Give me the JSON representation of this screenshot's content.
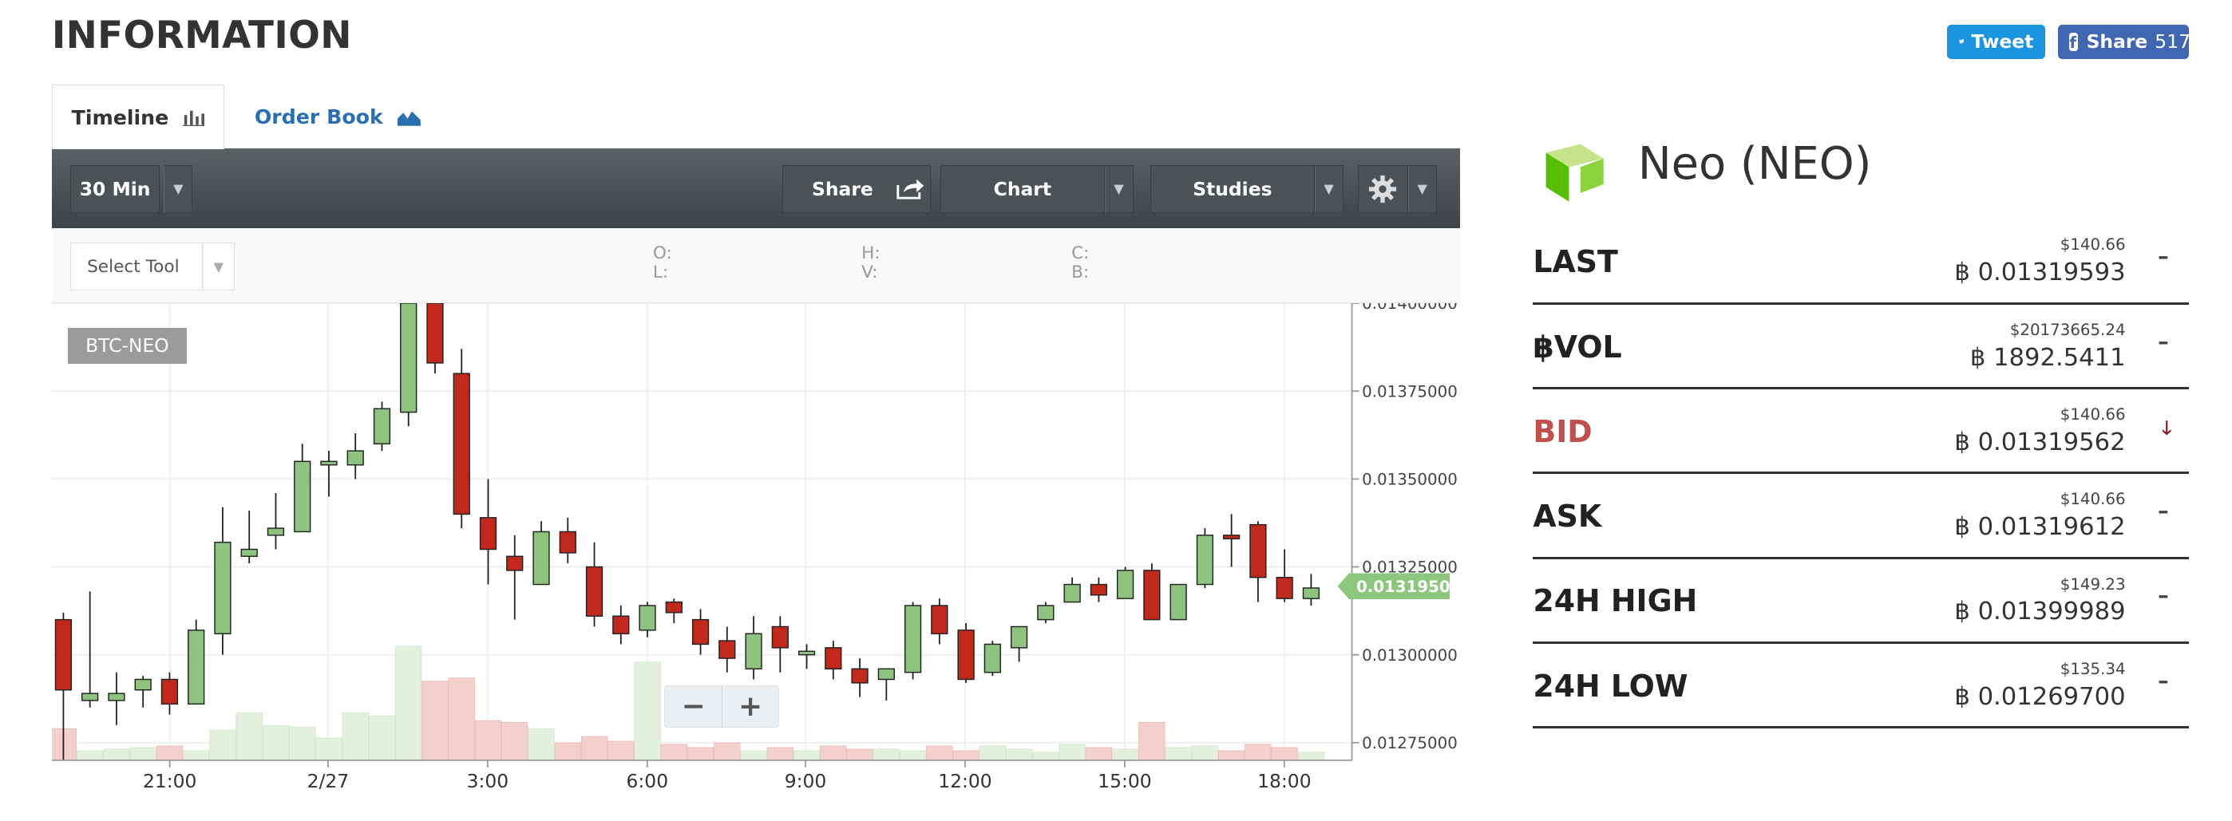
{
  "header": {
    "title": "INFORMATION"
  },
  "social": {
    "tweet_label": "Tweet",
    "share_label": "Share",
    "share_count": "517"
  },
  "tabs": [
    {
      "label": "Timeline"
    },
    {
      "label": "Order Book"
    }
  ],
  "toolbar": {
    "interval": "30 Min",
    "share_label": "Share",
    "chart_label": "Chart",
    "studies_label": "Studies"
  },
  "subtoolbar": {
    "select_tool": "Select Tool",
    "o": "O:",
    "l": "L:",
    "h": "H:",
    "v": "V:",
    "c": "C:",
    "b": "B:"
  },
  "chart": {
    "symbol": "BTC-NEO",
    "zoom_out": "−",
    "zoom_in": "+"
  },
  "chart_data": {
    "type": "candlestick",
    "symbol": "BTC-NEO",
    "x_tick_labels": [
      "21:00",
      "2/27",
      "3:00",
      "6:00",
      "9:00",
      "12:00",
      "15:00",
      "18:00"
    ],
    "y_tick_labels": [
      "0.01400000",
      "0.01375000",
      "0.01350000",
      "0.01325000",
      "0.01300000",
      "0.01275000"
    ],
    "ylim": [
      0.0127,
      0.014
    ],
    "current_price_label": "0.01319500",
    "current_price": 0.013195,
    "grid": true,
    "colors": {
      "up": "#8dc37f",
      "down": "#c0291c",
      "vol_up": "#e3f0dd",
      "vol_down": "#f3d0cc",
      "price_tag": "#8cc77d"
    },
    "candles": [
      {
        "o": 0.0131,
        "h": 0.01312,
        "l": 0.0127,
        "c": 0.0129,
        "v": 0.2
      },
      {
        "o": 0.01287,
        "h": 0.01318,
        "l": 0.01285,
        "c": 0.01289,
        "v": 0.06
      },
      {
        "o": 0.01287,
        "h": 0.01295,
        "l": 0.0128,
        "c": 0.01289,
        "v": 0.07
      },
      {
        "o": 0.0129,
        "h": 0.01294,
        "l": 0.01285,
        "c": 0.01293,
        "v": 0.08
      },
      {
        "o": 0.01293,
        "h": 0.01295,
        "l": 0.01283,
        "c": 0.01286,
        "v": 0.09
      },
      {
        "o": 0.01286,
        "h": 0.0131,
        "l": 0.01286,
        "c": 0.01307,
        "v": 0.06
      },
      {
        "o": 0.01306,
        "h": 0.01342,
        "l": 0.013,
        "c": 0.01332,
        "v": 0.19
      },
      {
        "o": 0.01328,
        "h": 0.01341,
        "l": 0.01326,
        "c": 0.0133,
        "v": 0.3
      },
      {
        "o": 0.01334,
        "h": 0.01346,
        "l": 0.0133,
        "c": 0.01336,
        "v": 0.22
      },
      {
        "o": 0.01335,
        "h": 0.0136,
        "l": 0.01335,
        "c": 0.01355,
        "v": 0.21
      },
      {
        "o": 0.01354,
        "h": 0.01358,
        "l": 0.01345,
        "c": 0.01355,
        "v": 0.14
      },
      {
        "o": 0.01354,
        "h": 0.01363,
        "l": 0.0135,
        "c": 0.01358,
        "v": 0.3
      },
      {
        "o": 0.0136,
        "h": 0.01372,
        "l": 0.01358,
        "c": 0.0137,
        "v": 0.28
      },
      {
        "o": 0.01369,
        "h": 0.014,
        "l": 0.01365,
        "c": 0.014,
        "v": 0.72
      },
      {
        "o": 0.014,
        "h": 0.01401,
        "l": 0.0138,
        "c": 0.01383,
        "v": 0.5
      },
      {
        "o": 0.0138,
        "h": 0.01387,
        "l": 0.01336,
        "c": 0.0134,
        "v": 0.52
      },
      {
        "o": 0.01339,
        "h": 0.0135,
        "l": 0.0132,
        "c": 0.0133,
        "v": 0.25
      },
      {
        "o": 0.01328,
        "h": 0.01334,
        "l": 0.0131,
        "c": 0.01324,
        "v": 0.24
      },
      {
        "o": 0.0132,
        "h": 0.01338,
        "l": 0.0132,
        "c": 0.01335,
        "v": 0.2
      },
      {
        "o": 0.01335,
        "h": 0.01339,
        "l": 0.01326,
        "c": 0.01329,
        "v": 0.11
      },
      {
        "o": 0.01325,
        "h": 0.01332,
        "l": 0.01308,
        "c": 0.01311,
        "v": 0.15
      },
      {
        "o": 0.01311,
        "h": 0.01314,
        "l": 0.01303,
        "c": 0.01306,
        "v": 0.12
      },
      {
        "o": 0.01307,
        "h": 0.01315,
        "l": 0.01305,
        "c": 0.01314,
        "v": 0.62
      },
      {
        "o": 0.01315,
        "h": 0.01316,
        "l": 0.01309,
        "c": 0.01312,
        "v": 0.1
      },
      {
        "o": 0.0131,
        "h": 0.01313,
        "l": 0.013,
        "c": 0.01303,
        "v": 0.08
      },
      {
        "o": 0.01304,
        "h": 0.01308,
        "l": 0.01295,
        "c": 0.01299,
        "v": 0.11
      },
      {
        "o": 0.01296,
        "h": 0.01311,
        "l": 0.01293,
        "c": 0.01306,
        "v": 0.06
      },
      {
        "o": 0.01308,
        "h": 0.01311,
        "l": 0.01295,
        "c": 0.01302,
        "v": 0.08
      },
      {
        "o": 0.013,
        "h": 0.01303,
        "l": 0.01296,
        "c": 0.01301,
        "v": 0.06
      },
      {
        "o": 0.01302,
        "h": 0.01304,
        "l": 0.01293,
        "c": 0.01296,
        "v": 0.09
      },
      {
        "o": 0.01296,
        "h": 0.01299,
        "l": 0.01288,
        "c": 0.01292,
        "v": 0.07
      },
      {
        "o": 0.01293,
        "h": 0.01296,
        "l": 0.01287,
        "c": 0.01296,
        "v": 0.07
      },
      {
        "o": 0.01295,
        "h": 0.01315,
        "l": 0.01293,
        "c": 0.01314,
        "v": 0.06
      },
      {
        "o": 0.01314,
        "h": 0.01316,
        "l": 0.01303,
        "c": 0.01306,
        "v": 0.09
      },
      {
        "o": 0.01307,
        "h": 0.01309,
        "l": 0.01292,
        "c": 0.01293,
        "v": 0.06
      },
      {
        "o": 0.01295,
        "h": 0.01304,
        "l": 0.01294,
        "c": 0.01303,
        "v": 0.09
      },
      {
        "o": 0.01302,
        "h": 0.01308,
        "l": 0.01298,
        "c": 0.01308,
        "v": 0.07
      },
      {
        "o": 0.0131,
        "h": 0.01315,
        "l": 0.01309,
        "c": 0.01314,
        "v": 0.05
      },
      {
        "o": 0.01315,
        "h": 0.01322,
        "l": 0.01315,
        "c": 0.0132,
        "v": 0.1
      },
      {
        "o": 0.0132,
        "h": 0.01322,
        "l": 0.01315,
        "c": 0.01317,
        "v": 0.08
      },
      {
        "o": 0.01316,
        "h": 0.01325,
        "l": 0.01316,
        "c": 0.01324,
        "v": 0.07
      },
      {
        "o": 0.01324,
        "h": 0.01326,
        "l": 0.0131,
        "c": 0.0131,
        "v": 0.24
      },
      {
        "o": 0.0131,
        "h": 0.0132,
        "l": 0.0131,
        "c": 0.0132,
        "v": 0.08
      },
      {
        "o": 0.0132,
        "h": 0.01336,
        "l": 0.01319,
        "c": 0.01334,
        "v": 0.09
      },
      {
        "o": 0.01334,
        "h": 0.0134,
        "l": 0.01325,
        "c": 0.01333,
        "v": 0.06
      },
      {
        "o": 0.01337,
        "h": 0.01338,
        "l": 0.01315,
        "c": 0.01322,
        "v": 0.1
      },
      {
        "o": 0.01322,
        "h": 0.0133,
        "l": 0.01315,
        "c": 0.01316,
        "v": 0.08
      },
      {
        "o": 0.01316,
        "h": 0.01323,
        "l": 0.01314,
        "c": 0.01319,
        "v": 0.05
      }
    ]
  },
  "coin": {
    "name": "Neo (NEO)"
  },
  "stats": [
    {
      "label": "LAST",
      "usd": "$140.66",
      "btc": "0.01319593",
      "trend": "–",
      "color": "#222222"
    },
    {
      "label": "฿VOL",
      "usd": "$20173665.24",
      "btc": "1892.5411",
      "trend": "–",
      "color": "#222222"
    },
    {
      "label": "BID",
      "usd": "$140.66",
      "btc": "0.01319562",
      "trend": "🡓",
      "color": "#c0504d"
    },
    {
      "label": "ASK",
      "usd": "$140.66",
      "btc": "0.01319612",
      "trend": "–",
      "color": "#222222"
    },
    {
      "label": "24H HIGH",
      "usd": "$149.23",
      "btc": "0.01399989",
      "trend": "–",
      "color": "#222222"
    },
    {
      "label": "24H LOW",
      "usd": "$135.34",
      "btc": "0.01269700",
      "trend": "–",
      "color": "#222222"
    }
  ],
  "btc_symbol": "฿"
}
